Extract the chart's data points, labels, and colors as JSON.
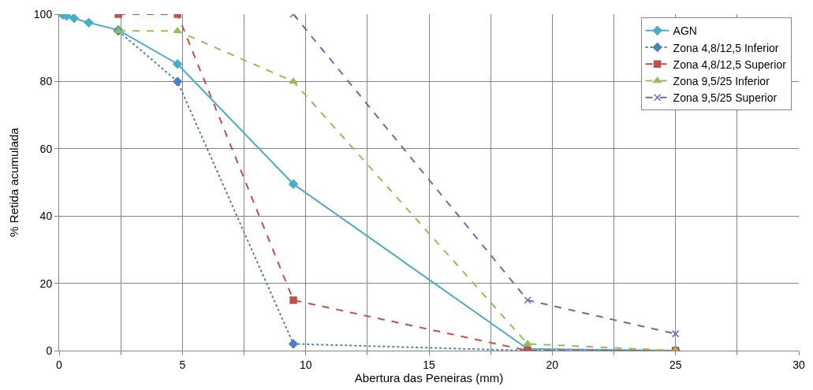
{
  "chart_data": {
    "type": "line",
    "xlabel": "Abertura das Peneiras (mm)",
    "ylabel": "% Retida acumulada",
    "xlim": [
      0,
      30
    ],
    "ylim": [
      0,
      100
    ],
    "xticks": [
      0,
      {
        "value": 2.5,
        "label": null
      },
      5,
      {
        "value": 7.5,
        "label": null
      },
      10,
      {
        "value": 12.5,
        "label": null
      },
      15,
      {
        "value": 17.5,
        "label": null
      },
      20,
      {
        "value": 22.5,
        "label": null
      },
      25,
      {
        "value": 27.5,
        "label": null
      },
      30
    ],
    "yticks": [
      0,
      20,
      40,
      60,
      80,
      100
    ],
    "grid": true,
    "legend": "top right",
    "series": [
      {
        "name": "AGN",
        "color": "#4bacc6",
        "x": [
          0.15,
          0.3,
          0.6,
          1.2,
          2.4,
          4.8,
          9.5,
          19,
          25
        ],
        "values": [
          99.8,
          99.5,
          98.8,
          97.5,
          95.3,
          85.2,
          49.5,
          0.5,
          0
        ],
        "marker": "diamond",
        "line_style": "solid"
      },
      {
        "name": "Zona 4,8/12,5 Inferior",
        "color": "#4f81bd",
        "x": [
          2.4,
          4.8,
          9.5,
          19,
          25
        ],
        "values": [
          95,
          80,
          2,
          0,
          0
        ],
        "marker": "diamond",
        "line_style": "dotted"
      },
      {
        "name": "Zona 4,8/12,5 Superior",
        "color": "#c0504d",
        "x": [
          2.4,
          4.8,
          9.5,
          19,
          25
        ],
        "values": [
          100,
          100,
          15,
          0,
          0
        ],
        "marker": "square",
        "line_style": "dashed"
      },
      {
        "name": "Zona 9,5/25 Inferior",
        "color": "#9bbb59",
        "x": [
          2.4,
          4.8,
          9.5,
          19,
          25
        ],
        "values": [
          95,
          95,
          80,
          2,
          0
        ],
        "marker": "triangle",
        "line_style": "dashed"
      },
      {
        "name": "Zona 9,5/25 Superior",
        "color": "#8064a2",
        "x": [
          9.5,
          19,
          25
        ],
        "values": [
          100,
          15,
          5
        ],
        "marker": "cross",
        "line_style": "dashed"
      }
    ]
  }
}
